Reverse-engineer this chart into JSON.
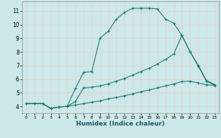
{
  "xlabel": "Humidex (Indice chaleur)",
  "xlim": [
    -0.5,
    23.5
  ],
  "ylim": [
    3.5,
    11.7
  ],
  "xticks": [
    0,
    1,
    2,
    3,
    4,
    5,
    6,
    7,
    8,
    9,
    10,
    11,
    12,
    13,
    14,
    15,
    16,
    17,
    18,
    19,
    20,
    21,
    22,
    23
  ],
  "yticks": [
    4,
    5,
    6,
    7,
    8,
    9,
    10,
    11
  ],
  "background_color": "#cce8e8",
  "grid_color": "#e8d0d0",
  "line_color": "#1a7a6e",
  "line1_x": [
    0,
    1,
    2,
    3,
    4,
    5,
    6,
    7,
    8,
    9,
    10,
    11,
    12,
    13,
    14,
    15,
    16,
    17,
    18,
    19,
    20,
    21,
    22,
    23
  ],
  "line1_y": [
    4.2,
    4.2,
    4.2,
    3.85,
    3.95,
    4.0,
    5.3,
    6.5,
    6.55,
    9.0,
    9.5,
    10.4,
    10.9,
    11.2,
    11.2,
    11.2,
    11.15,
    10.4,
    10.1,
    9.2,
    8.0,
    7.0,
    5.9,
    5.6
  ],
  "line2_x": [
    0,
    1,
    2,
    3,
    4,
    5,
    6,
    7,
    8,
    9,
    10,
    11,
    12,
    13,
    14,
    15,
    16,
    17,
    18,
    19,
    20,
    21,
    22,
    23
  ],
  "line2_y": [
    4.2,
    4.2,
    4.2,
    3.85,
    3.95,
    4.0,
    4.35,
    5.35,
    5.4,
    5.5,
    5.65,
    5.85,
    6.05,
    6.3,
    6.55,
    6.8,
    7.1,
    7.45,
    7.85,
    9.2,
    8.0,
    6.95,
    5.85,
    5.55
  ],
  "line3_x": [
    0,
    1,
    2,
    3,
    4,
    5,
    6,
    7,
    8,
    9,
    10,
    11,
    12,
    13,
    14,
    15,
    16,
    17,
    18,
    19,
    20,
    21,
    22,
    23
  ],
  "line3_y": [
    4.2,
    4.2,
    4.2,
    3.85,
    3.95,
    4.0,
    4.1,
    4.2,
    4.3,
    4.4,
    4.55,
    4.65,
    4.78,
    4.92,
    5.07,
    5.2,
    5.35,
    5.5,
    5.65,
    5.82,
    5.85,
    5.72,
    5.58,
    5.55
  ]
}
